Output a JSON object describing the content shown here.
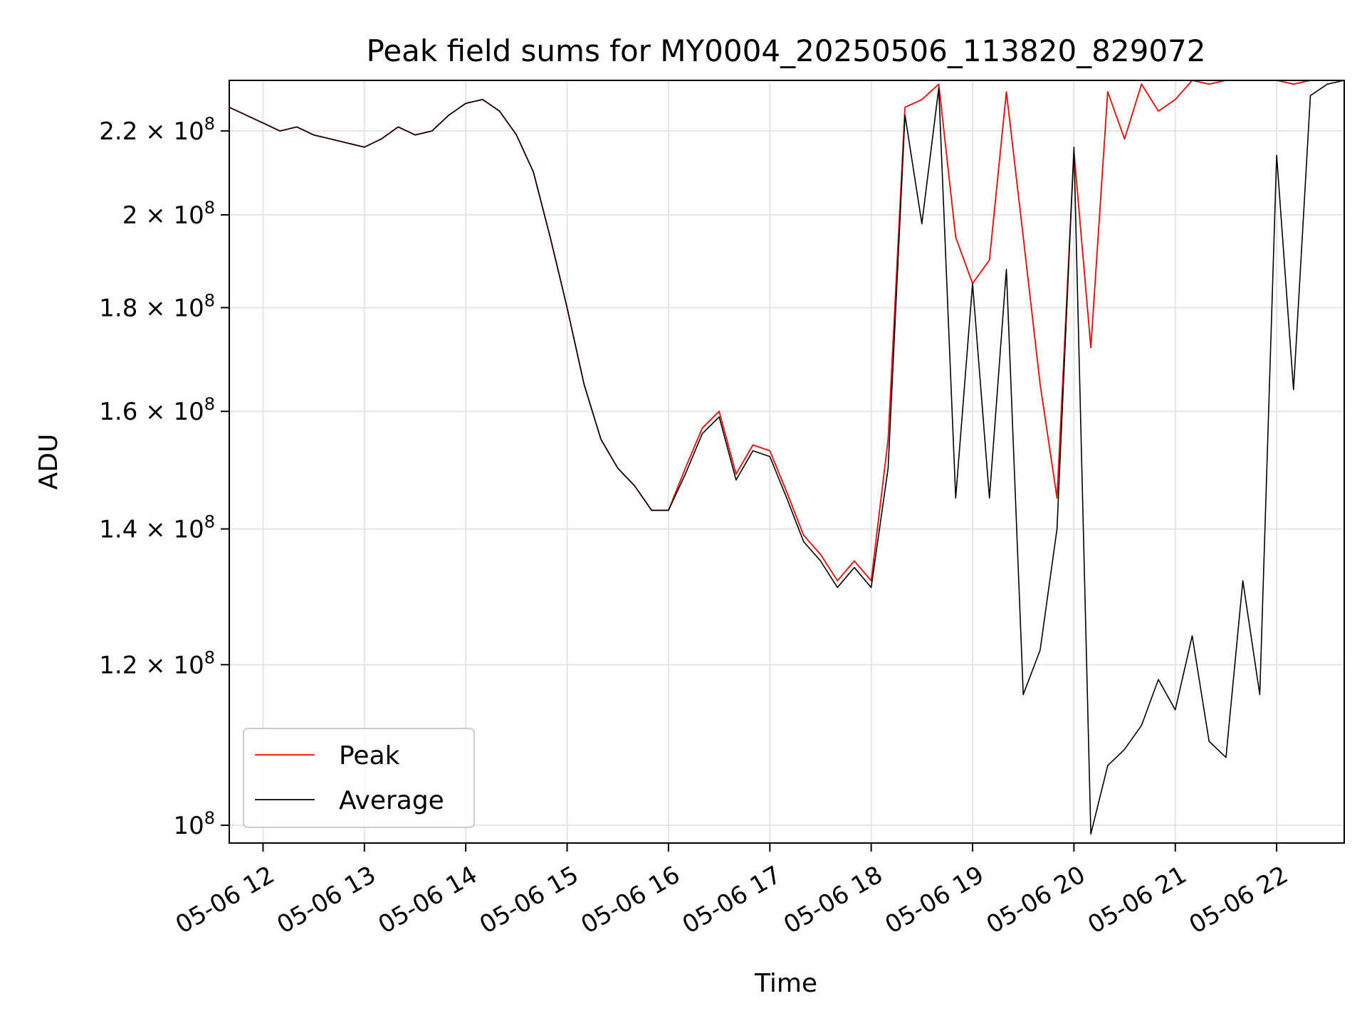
{
  "chart_data": {
    "type": "line",
    "title": "Peak field sums for MY0004_20250506_113820_829072",
    "xlabel": "Time",
    "ylabel": "ADU",
    "yscale": "log",
    "ylim": [
      98000000,
      233000000
    ],
    "xlim": [
      "2025-05-06 11:40",
      "2025-05-06 22:40"
    ],
    "grid": true,
    "legend_position": "lower-left",
    "x_ticks": [
      {
        "value": "2025-05-06 12:00",
        "label": "05-06 12"
      },
      {
        "value": "2025-05-06 13:00",
        "label": "05-06 13"
      },
      {
        "value": "2025-05-06 14:00",
        "label": "05-06 14"
      },
      {
        "value": "2025-05-06 15:00",
        "label": "05-06 15"
      },
      {
        "value": "2025-05-06 16:00",
        "label": "05-06 16"
      },
      {
        "value": "2025-05-06 17:00",
        "label": "05-06 17"
      },
      {
        "value": "2025-05-06 18:00",
        "label": "05-06 18"
      },
      {
        "value": "2025-05-06 19:00",
        "label": "05-06 19"
      },
      {
        "value": "2025-05-06 20:00",
        "label": "05-06 20"
      },
      {
        "value": "2025-05-06 21:00",
        "label": "05-06 21"
      },
      {
        "value": "2025-05-06 22:00",
        "label": "05-06 22"
      }
    ],
    "y_ticks": [
      {
        "value": 100000000,
        "mantissa": "",
        "exponent": "8"
      },
      {
        "value": 120000000,
        "mantissa": "1.2",
        "exponent": "8"
      },
      {
        "value": 140000000,
        "mantissa": "1.4",
        "exponent": "8"
      },
      {
        "value": 160000000,
        "mantissa": "1.6",
        "exponent": "8"
      },
      {
        "value": 180000000,
        "mantissa": "1.8",
        "exponent": "8"
      },
      {
        "value": 200000000,
        "mantissa": "2",
        "exponent": "8"
      },
      {
        "value": 220000000,
        "mantissa": "2.2",
        "exponent": "8"
      }
    ],
    "x": [
      "2025-05-06 11:40",
      "2025-05-06 11:50",
      "2025-05-06 12:00",
      "2025-05-06 12:10",
      "2025-05-06 12:20",
      "2025-05-06 12:30",
      "2025-05-06 12:40",
      "2025-05-06 12:50",
      "2025-05-06 13:00",
      "2025-05-06 13:10",
      "2025-05-06 13:20",
      "2025-05-06 13:30",
      "2025-05-06 13:40",
      "2025-05-06 13:50",
      "2025-05-06 14:00",
      "2025-05-06 14:10",
      "2025-05-06 14:20",
      "2025-05-06 14:30",
      "2025-05-06 14:40",
      "2025-05-06 14:50",
      "2025-05-06 15:00",
      "2025-05-06 15:10",
      "2025-05-06 15:20",
      "2025-05-06 15:30",
      "2025-05-06 15:40",
      "2025-05-06 15:50",
      "2025-05-06 16:00",
      "2025-05-06 16:10",
      "2025-05-06 16:20",
      "2025-05-06 16:30",
      "2025-05-06 16:40",
      "2025-05-06 16:50",
      "2025-05-06 17:00",
      "2025-05-06 17:10",
      "2025-05-06 17:20",
      "2025-05-06 17:30",
      "2025-05-06 17:40",
      "2025-05-06 17:50",
      "2025-05-06 18:00",
      "2025-05-06 18:10",
      "2025-05-06 18:20",
      "2025-05-06 18:30",
      "2025-05-06 18:40",
      "2025-05-06 18:50",
      "2025-05-06 19:00",
      "2025-05-06 19:10",
      "2025-05-06 19:20",
      "2025-05-06 19:30",
      "2025-05-06 19:40",
      "2025-05-06 19:50",
      "2025-05-06 20:00",
      "2025-05-06 20:10",
      "2025-05-06 20:20",
      "2025-05-06 20:30",
      "2025-05-06 20:40",
      "2025-05-06 20:50",
      "2025-05-06 21:00",
      "2025-05-06 21:10",
      "2025-05-06 21:20",
      "2025-05-06 21:30",
      "2025-05-06 21:40",
      "2025-05-06 21:50",
      "2025-05-06 22:00",
      "2025-05-06 22:10",
      "2025-05-06 22:20",
      "2025-05-06 22:30",
      "2025-05-06 22:40"
    ],
    "series": [
      {
        "name": "Peak",
        "color": "#ff0000",
        "values": [
          226000000,
          224000000,
          222000000,
          220000000,
          221000000,
          219000000,
          218000000,
          217000000,
          216000000,
          218000000,
          221000000,
          219000000,
          220000000,
          224000000,
          227000000,
          228000000,
          225000000,
          219000000,
          210000000,
          195000000,
          180000000,
          165000000,
          155000000,
          150000000,
          147000000,
          143000000,
          143000000,
          150000000,
          157000000,
          160000000,
          149000000,
          154000000,
          153000000,
          146000000,
          139000000,
          136000000,
          132000000,
          135000000,
          132000000,
          155000000,
          226000000,
          228000000,
          232000000,
          195000000,
          185000000,
          190000000,
          230000000,
          195000000,
          165000000,
          145000000,
          215000000,
          172000000,
          230000000,
          218000000,
          232000000,
          225000000,
          228000000,
          233000000,
          232000000,
          233000000,
          233000000,
          233000000,
          233000000,
          232000000,
          233000000,
          233000000,
          233000000
        ]
      },
      {
        "name": "Average",
        "color": "#000000",
        "values": [
          226000000,
          224000000,
          222000000,
          220000000,
          221000000,
          219000000,
          218000000,
          217000000,
          216000000,
          218000000,
          221000000,
          219000000,
          220000000,
          224000000,
          227000000,
          228000000,
          225000000,
          219000000,
          210000000,
          195000000,
          180000000,
          165000000,
          155000000,
          150000000,
          147000000,
          143000000,
          143000000,
          149000000,
          156000000,
          159000000,
          148000000,
          153000000,
          152000000,
          145000000,
          138000000,
          135000000,
          131000000,
          134000000,
          131000000,
          150000000,
          224000000,
          198000000,
          231000000,
          145000000,
          185000000,
          145000000,
          188000000,
          116000000,
          122000000,
          140000000,
          216000000,
          99000000,
          107000000,
          109000000,
          112000000,
          118000000,
          114000000,
          124000000,
          110000000,
          108000000,
          132000000,
          116000000,
          214000000,
          164000000,
          229000000,
          232000000,
          233000000
        ]
      }
    ]
  }
}
